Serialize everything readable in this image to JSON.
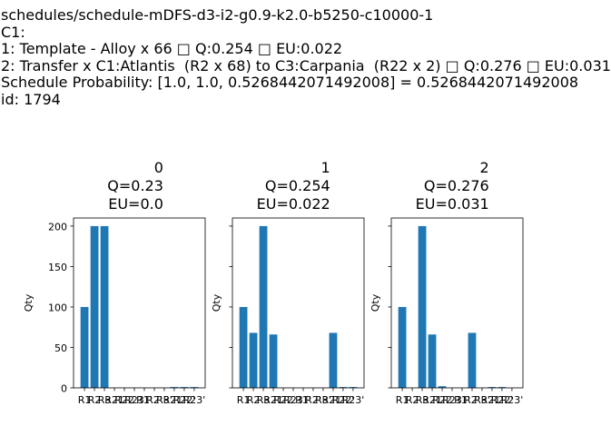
{
  "header": {
    "lines": [
      "schedules/schedule-mDFS-d3-i2-g0.9-k2.0-b5250-c10000-1",
      "C1:",
      "1: Template - Alloy x 66 □ Q:0.254 □ EU:0.022",
      "2: Transfer x C1:Atlantis  (R2 x 68) to C3:Carpania  (R22 x 2) □ Q:0.276 □ EU:0.031",
      "Schedule Probability: [1.0, 1.0, 0.5268442071492008] = 0.5268442071492008",
      "id: 1794"
    ]
  },
  "chart_data": [
    {
      "type": "bar",
      "title": "0",
      "subtitle_lines": [
        "Q=0.23",
        "EU=0.0"
      ],
      "ylabel": "Qty",
      "ylim": [
        0,
        210
      ],
      "yticks": [
        0,
        50,
        100,
        150,
        200
      ],
      "categories": [
        "R1",
        "R2",
        "R3",
        "R21",
        "R22",
        "R23",
        "R1'",
        "R2'",
        "R3'",
        "R21'",
        "R22'",
        "R23'"
      ],
      "tick_labels": [
        "R1",
        "R2",
        "R3",
        "R21",
        "R22",
        "R23",
        "R1'",
        "R2'",
        "R3'",
        "R21'",
        "R22'",
        "R23'"
      ],
      "values": [
        100,
        200,
        200,
        0,
        0,
        0,
        0,
        0,
        0,
        1,
        1,
        1
      ],
      "bar_color": "#1f77b4"
    },
    {
      "type": "bar",
      "title": "1",
      "subtitle_lines": [
        "Q=0.254",
        "EU=0.022"
      ],
      "ylabel": "Qty",
      "ylim": [
        0,
        210
      ],
      "yticks": [
        0,
        50,
        100,
        150,
        200
      ],
      "categories": [
        "R1",
        "R2",
        "R3",
        "R21",
        "R22",
        "R23",
        "R1'",
        "R2'",
        "R3'",
        "R21'",
        "R22'",
        "R23'"
      ],
      "tick_labels": [
        "R1",
        "R2",
        "R3",
        "R21",
        "R22",
        "R23",
        "R1'",
        "R2'",
        "R3'",
        "R21'",
        "R22'",
        "R23'"
      ],
      "values": [
        100,
        68,
        200,
        66,
        0,
        0,
        0,
        0,
        0,
        68,
        1,
        1
      ],
      "bar_color": "#1f77b4"
    },
    {
      "type": "bar",
      "title": "2",
      "subtitle_lines": [
        "Q=0.276",
        "EU=0.031"
      ],
      "ylabel": "Qty",
      "ylim": [
        0,
        210
      ],
      "yticks": [
        0,
        50,
        100,
        150,
        200
      ],
      "categories": [
        "R1",
        "R2",
        "R3",
        "R21",
        "R22",
        "R23",
        "R1'",
        "R2'",
        "R3'",
        "R21'",
        "R22'",
        "R23'"
      ],
      "tick_labels": [
        "R1",
        "R2",
        "R3",
        "R21",
        "R22",
        "R23",
        "R1'",
        "R2'",
        "R3'",
        "R21'",
        "R22'",
        "R23'"
      ],
      "values": [
        100,
        0,
        200,
        66,
        2,
        0,
        0,
        68,
        0,
        1,
        1,
        0
      ],
      "bar_color": "#1f77b4"
    }
  ]
}
